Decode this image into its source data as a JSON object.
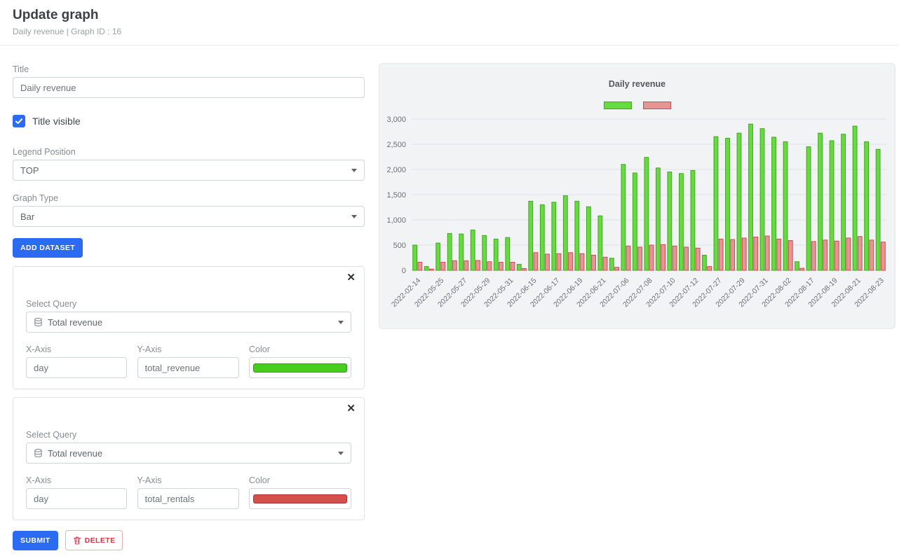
{
  "header": {
    "title": "Update graph",
    "subtitle": "Daily revenue | Graph ID : 16"
  },
  "form": {
    "title_label": "Title",
    "title_value": "Daily revenue",
    "title_visible_label": "Title visible",
    "title_visible_checked": true,
    "legend_position_label": "Legend Position",
    "legend_position_value": "TOP",
    "graph_type_label": "Graph Type",
    "graph_type_value": "Bar",
    "add_dataset_label": "ADD DATASET",
    "select_query_label": "Select Query",
    "datasets": [
      {
        "query_value": "Total revenue",
        "x_axis_label": "X-Axis",
        "x_axis_value": "day",
        "y_axis_label": "Y-Axis",
        "y_axis_value": "total_revenue",
        "color_label": "Color",
        "color_fill": "#46cd1e",
        "color_border": "#2f9e12"
      },
      {
        "query_value": "Total revenue",
        "x_axis_label": "X-Axis",
        "x_axis_value": "day",
        "y_axis_label": "Y-Axis",
        "y_axis_value": "total_rentals",
        "color_label": "Color",
        "color_fill": "#d5504c",
        "color_border": "#a83431"
      }
    ],
    "submit_label": "SUBMIT",
    "delete_label": "DELETE"
  },
  "chart_data": {
    "type": "bar",
    "title": "Daily revenue",
    "xlabel": "",
    "ylabel": "",
    "ylim": [
      0,
      3000
    ],
    "yticks": [
      0,
      500,
      1000,
      1500,
      2000,
      2500,
      3000
    ],
    "grid": "horizontal",
    "legend_position": "top",
    "x_label_rotation": -45,
    "x_label_every": 2,
    "categories": [
      "2022-02-14",
      "2022-05-24",
      "2022-05-25",
      "2022-05-26",
      "2022-05-27",
      "2022-05-28",
      "2022-05-29",
      "2022-05-30",
      "2022-05-31",
      "2022-06-01",
      "2022-06-15",
      "2022-06-16",
      "2022-06-17",
      "2022-06-18",
      "2022-06-19",
      "2022-06-20",
      "2022-06-21",
      "2022-06-22",
      "2022-07-06",
      "2022-07-07",
      "2022-07-08",
      "2022-07-09",
      "2022-07-10",
      "2022-07-11",
      "2022-07-12",
      "2022-07-13",
      "2022-07-27",
      "2022-07-28",
      "2022-07-29",
      "2022-07-30",
      "2022-07-31",
      "2022-08-01",
      "2022-08-02",
      "2022-08-03",
      "2022-08-17",
      "2022-08-18",
      "2022-08-19",
      "2022-08-20",
      "2022-08-21",
      "2022-08-22",
      "2022-08-23"
    ],
    "series": [
      {
        "name": "total_revenue",
        "fill": "#68d943",
        "stroke": "#3fa81f",
        "values": [
          500,
          75,
          540,
          730,
          720,
          800,
          690,
          620,
          650,
          120,
          1370,
          1300,
          1350,
          1480,
          1370,
          1260,
          1080,
          240,
          2100,
          1930,
          2240,
          2030,
          1950,
          1920,
          1980,
          300,
          2650,
          2620,
          2720,
          2900,
          2810,
          2640,
          2550,
          170,
          2450,
          2720,
          2570,
          2700,
          2860,
          2550,
          2400
        ]
      },
      {
        "name": "total_rentals",
        "fill": "#e49595",
        "stroke": "#cc4c4c",
        "values": [
          160,
          25,
          160,
          190,
          190,
          195,
          170,
          160,
          160,
          35,
          350,
          320,
          330,
          350,
          330,
          300,
          260,
          60,
          480,
          460,
          500,
          510,
          480,
          460,
          440,
          75,
          620,
          610,
          640,
          660,
          680,
          620,
          590,
          40,
          570,
          600,
          580,
          640,
          670,
          600,
          560
        ]
      }
    ]
  }
}
